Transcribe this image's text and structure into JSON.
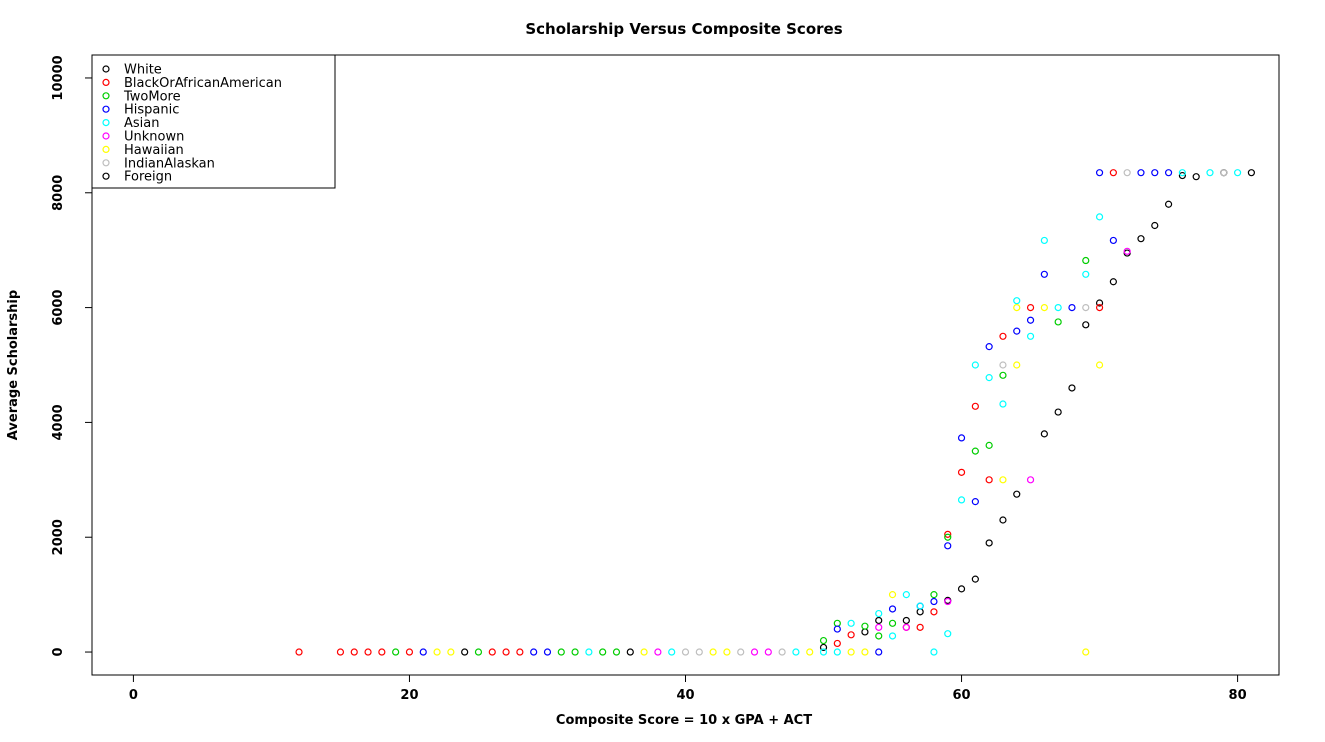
{
  "chart_data": {
    "type": "scatter",
    "title": "Scholarship Versus Composite Scores",
    "xlabel": "Composite Score = 10 x GPA + ACT",
    "ylabel": "Average Scholarship",
    "xlim": [
      -3,
      83
    ],
    "ylim": [
      -400,
      10400
    ],
    "xticks": [
      0,
      20,
      40,
      60,
      80
    ],
    "yticks": [
      0,
      2000,
      4000,
      6000,
      8000,
      10000
    ],
    "legend_position": "top-left",
    "grid": false,
    "series": [
      {
        "name": "White",
        "color": "#000000",
        "points": [
          [
            24,
            0
          ],
          [
            36,
            0
          ],
          [
            50,
            80
          ],
          [
            53,
            350
          ],
          [
            54,
            550
          ],
          [
            56,
            550
          ],
          [
            57,
            700
          ],
          [
            59,
            900
          ],
          [
            60,
            1100
          ],
          [
            61,
            1270
          ],
          [
            62,
            1900
          ],
          [
            63,
            2300
          ],
          [
            64,
            2750
          ],
          [
            66,
            3800
          ],
          [
            67,
            4180
          ],
          [
            68,
            4600
          ],
          [
            69,
            5700
          ],
          [
            70,
            6080
          ],
          [
            71,
            6450
          ],
          [
            72,
            6950
          ],
          [
            73,
            7200
          ],
          [
            74,
            7430
          ],
          [
            75,
            7800
          ],
          [
            76,
            8300
          ],
          [
            77,
            8280
          ],
          [
            79,
            8350
          ],
          [
            81,
            8350
          ]
        ]
      },
      {
        "name": "BlackOrAfricanAmerican",
        "color": "#ff0000",
        "points": [
          [
            12,
            0
          ],
          [
            15,
            0
          ],
          [
            16,
            0
          ],
          [
            17,
            0
          ],
          [
            18,
            0
          ],
          [
            20,
            0
          ],
          [
            26,
            0
          ],
          [
            27,
            0
          ],
          [
            28,
            0
          ],
          [
            51,
            150
          ],
          [
            52,
            300
          ],
          [
            56,
            430
          ],
          [
            57,
            430
          ],
          [
            58,
            700
          ],
          [
            59,
            2050
          ],
          [
            60,
            3130
          ],
          [
            61,
            4280
          ],
          [
            62,
            3000
          ],
          [
            63,
            5500
          ],
          [
            65,
            6000
          ],
          [
            70,
            6000
          ],
          [
            71,
            8350
          ]
        ]
      },
      {
        "name": "TwoMore",
        "color": "#00cd00",
        "points": [
          [
            19,
            0
          ],
          [
            25,
            0
          ],
          [
            31,
            0
          ],
          [
            32,
            0
          ],
          [
            34,
            0
          ],
          [
            35,
            0
          ],
          [
            50,
            200
          ],
          [
            51,
            500
          ],
          [
            53,
            450
          ],
          [
            54,
            280
          ],
          [
            55,
            500
          ],
          [
            58,
            1000
          ],
          [
            59,
            2000
          ],
          [
            61,
            3500
          ],
          [
            62,
            3600
          ],
          [
            63,
            4820
          ],
          [
            67,
            5750
          ],
          [
            69,
            6820
          ]
        ]
      },
      {
        "name": "Hispanic",
        "color": "#0000ff",
        "points": [
          [
            21,
            0
          ],
          [
            29,
            0
          ],
          [
            30,
            0
          ],
          [
            51,
            400
          ],
          [
            54,
            0
          ],
          [
            55,
            750
          ],
          [
            57,
            800
          ],
          [
            58,
            880
          ],
          [
            59,
            1850
          ],
          [
            60,
            3730
          ],
          [
            61,
            2620
          ],
          [
            62,
            5320
          ],
          [
            64,
            5590
          ],
          [
            65,
            5780
          ],
          [
            66,
            6580
          ],
          [
            68,
            6000
          ],
          [
            70,
            8350
          ],
          [
            71,
            7170
          ],
          [
            73,
            8350
          ],
          [
            74,
            8350
          ],
          [
            75,
            8350
          ]
        ]
      },
      {
        "name": "Asian",
        "color": "#00ffff",
        "points": [
          [
            33,
            0
          ],
          [
            39,
            0
          ],
          [
            48,
            0
          ],
          [
            50,
            0
          ],
          [
            51,
            0
          ],
          [
            52,
            500
          ],
          [
            55,
            280
          ],
          [
            54,
            670
          ],
          [
            56,
            1000
          ],
          [
            57,
            800
          ],
          [
            58,
            0
          ],
          [
            59,
            320
          ],
          [
            60,
            2650
          ],
          [
            61,
            5000
          ],
          [
            62,
            4780
          ],
          [
            63,
            4320
          ],
          [
            64,
            6120
          ],
          [
            65,
            5500
          ],
          [
            66,
            7170
          ],
          [
            67,
            6000
          ],
          [
            69,
            6580
          ],
          [
            70,
            7580
          ],
          [
            76,
            8350
          ],
          [
            78,
            8350
          ],
          [
            80,
            8350
          ]
        ]
      },
      {
        "name": "Unknown",
        "color": "#ff00ff",
        "points": [
          [
            38,
            0
          ],
          [
            45,
            0
          ],
          [
            46,
            0
          ],
          [
            54,
            430
          ],
          [
            56,
            430
          ],
          [
            59,
            880
          ],
          [
            65,
            3000
          ],
          [
            72,
            6980
          ]
        ]
      },
      {
        "name": "Hawaiian",
        "color": "#ffff00",
        "points": [
          [
            22,
            0
          ],
          [
            23,
            0
          ],
          [
            37,
            0
          ],
          [
            42,
            0
          ],
          [
            43,
            0
          ],
          [
            49,
            0
          ],
          [
            52,
            0
          ],
          [
            53,
            0
          ],
          [
            55,
            1000
          ],
          [
            63,
            3000
          ],
          [
            64,
            5000
          ],
          [
            64,
            6000
          ],
          [
            66,
            6000
          ],
          [
            69,
            0
          ],
          [
            70,
            5000
          ]
        ]
      },
      {
        "name": "IndianAlaskan",
        "color": "#bebebe",
        "points": [
          [
            40,
            0
          ],
          [
            41,
            0
          ],
          [
            44,
            0
          ],
          [
            47,
            0
          ],
          [
            63,
            5000
          ],
          [
            69,
            6000
          ],
          [
            72,
            8350
          ],
          [
            79,
            8350
          ]
        ]
      },
      {
        "name": "Foreign",
        "color": "#000000",
        "points": []
      }
    ]
  }
}
